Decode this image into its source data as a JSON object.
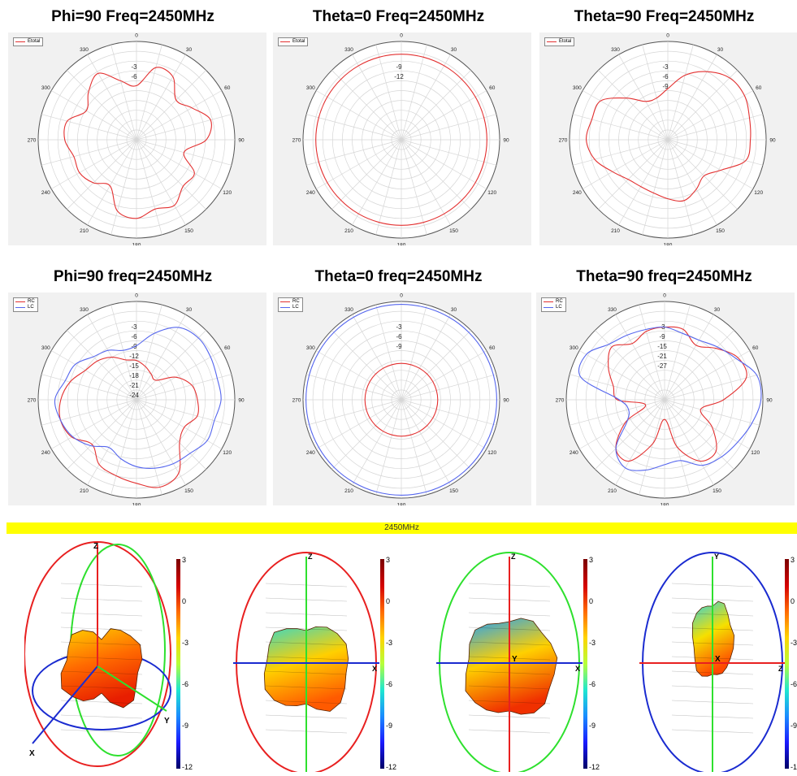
{
  "angle_labels": [
    "0",
    "30",
    "60",
    "90",
    "120",
    "150",
    "180",
    "210",
    "240",
    "270",
    "300",
    "330"
  ],
  "charts": [
    {
      "title": "Phi=90 Freq=2450MHz",
      "legend": [
        "Etotal"
      ],
      "rings": [
        "-3",
        "-6"
      ],
      "series": [
        {
          "name": "Etotal",
          "color": "#e33030",
          "r": [
            0.55,
            0.76,
            0.74,
            0.57,
            0.65,
            0.78,
            0.71,
            0.5,
            0.68,
            0.67,
            0.77,
            0.73,
            0.8,
            0.75,
            0.54,
            0.62,
            0.67,
            0.66,
            0.73,
            0.73,
            0.59,
            0.69,
            0.78,
            0.62
          ]
        }
      ]
    },
    {
      "title": "Theta=0 Freq=2450MHz",
      "legend": [
        "Etotal"
      ],
      "rings": [
        "-9",
        "-12"
      ],
      "series": [
        {
          "name": "Etotal",
          "color": "#e33030",
          "r": [
            0.87,
            0.87,
            0.87,
            0.87,
            0.87,
            0.87,
            0.87,
            0.87,
            0.87,
            0.87,
            0.87,
            0.87,
            0.87,
            0.87,
            0.87,
            0.87,
            0.87,
            0.87,
            0.87,
            0.87,
            0.87,
            0.87,
            0.87,
            0.87
          ]
        }
      ]
    },
    {
      "title": "Theta=90 Freq=2450MHz",
      "legend": [
        "Etotal"
      ],
      "rings": [
        "-3",
        "-6",
        "-9"
      ],
      "series": [
        {
          "name": "Etotal",
          "color": "#e33030",
          "r": [
            0.52,
            0.68,
            0.8,
            0.89,
            0.9,
            0.86,
            0.84,
            0.82,
            0.62,
            0.52,
            0.58,
            0.64,
            0.6,
            0.56,
            0.55,
            0.57,
            0.65,
            0.77,
            0.83,
            0.8,
            0.79,
            0.6,
            0.45,
            0.44
          ]
        }
      ]
    },
    {
      "title": "Phi=90 freq=2450MHz",
      "legend": [
        "RC",
        "LC"
      ],
      "rings": [
        "-3",
        "-6",
        "-9",
        "-12",
        "-15",
        "-18",
        "-21",
        "-24"
      ],
      "series": [
        {
          "name": "RC",
          "color": "#e33030",
          "r": [
            0.4,
            0.35,
            0.3,
            0.28,
            0.46,
            0.58,
            0.62,
            0.64,
            0.56,
            0.62,
            0.86,
            0.92,
            0.85,
            0.8,
            0.76,
            0.64,
            0.76,
            0.8,
            0.77,
            0.7,
            0.6,
            0.56,
            0.5,
            0.42
          ]
        },
        {
          "name": "LC",
          "color": "#5566ee",
          "r": [
            0.55,
            0.7,
            0.85,
            0.89,
            0.87,
            0.85,
            0.86,
            0.82,
            0.83,
            0.77,
            0.75,
            0.72,
            0.68,
            0.62,
            0.56,
            0.66,
            0.75,
            0.8,
            0.83,
            0.75,
            0.72,
            0.62,
            0.58,
            0.52
          ]
        }
      ]
    },
    {
      "title": "Theta=0 freq=2450MHz",
      "legend": [
        "RC",
        "LC"
      ],
      "rings": [
        "-3",
        "-6",
        "-9"
      ],
      "series": [
        {
          "name": "RC",
          "color": "#e33030",
          "r": [
            0.37,
            0.37,
            0.37,
            0.37,
            0.37,
            0.37,
            0.37,
            0.37,
            0.37,
            0.37,
            0.37,
            0.37,
            0.37,
            0.37,
            0.37,
            0.37,
            0.37,
            0.37,
            0.37,
            0.37,
            0.37,
            0.37,
            0.37,
            0.37
          ]
        },
        {
          "name": "LC",
          "color": "#5566ee",
          "r": [
            0.97,
            0.97,
            0.97,
            0.97,
            0.97,
            0.97,
            0.97,
            0.97,
            0.97,
            0.97,
            0.97,
            0.97,
            0.97,
            0.97,
            0.97,
            0.97,
            0.97,
            0.97,
            0.97,
            0.97,
            0.97,
            0.97,
            0.97,
            0.97
          ]
        }
      ]
    },
    {
      "title": "Theta=90 freq=2450MHz",
      "legend": [
        "RC",
        "LC"
      ],
      "rings": [
        "-3",
        "-9",
        "-15",
        "-21",
        "-27"
      ],
      "series": [
        {
          "name": "RC",
          "color": "#e33030",
          "r": [
            0.74,
            0.74,
            0.64,
            0.74,
            0.86,
            0.86,
            0.6,
            0.38,
            0.56,
            0.74,
            0.72,
            0.5,
            0.2,
            0.46,
            0.72,
            0.7,
            0.46,
            0.2,
            0.48,
            0.54,
            0.66,
            0.76,
            0.66,
            0.72
          ]
        },
        {
          "name": "LC",
          "color": "#5566ee",
          "r": [
            0.74,
            0.7,
            0.7,
            0.76,
            0.84,
            0.97,
            0.98,
            0.92,
            0.86,
            0.82,
            0.77,
            0.64,
            0.66,
            0.74,
            0.8,
            0.7,
            0.44,
            0.38,
            0.46,
            0.88,
            0.92,
            0.8,
            0.76,
            0.74
          ]
        }
      ]
    }
  ],
  "banner": "2450MHz",
  "views3d": [
    {
      "axes": [
        "Z",
        "X",
        "Y"
      ],
      "colorbar": [
        "3",
        "0",
        "-3",
        "-6",
        "-9",
        "-12"
      ]
    },
    {
      "axes": [
        "Z",
        "X"
      ],
      "colorbar": [
        "3",
        "0",
        "-3",
        "-6",
        "-9",
        "-12"
      ]
    },
    {
      "axes": [
        "Z",
        "X",
        "Y"
      ],
      "colorbar": [
        "3",
        "0",
        "-3",
        "-6",
        "-9",
        "-12"
      ]
    },
    {
      "axes": [
        "Y",
        "Z",
        "X"
      ],
      "colorbar": [
        "3",
        "0",
        "-3",
        "-6",
        "-9",
        "-1"
      ]
    }
  ],
  "colors": {
    "rc": "#e33030",
    "lc": "#5566ee",
    "grid": "#d6d6d6",
    "panel": "#f1f1f1",
    "banner": "#ffff00"
  },
  "chart_data": [
    {
      "type": "polar",
      "title": "Phi=90 Freq=2450MHz",
      "angle_step_deg": 15,
      "series": [
        {
          "name": "Etotal",
          "r": [
            0.55,
            0.76,
            0.74,
            0.57,
            0.65,
            0.78,
            0.71,
            0.5,
            0.68,
            0.67,
            0.77,
            0.73,
            0.8,
            0.75,
            0.54,
            0.62,
            0.67,
            0.66,
            0.73,
            0.73,
            0.59,
            0.69,
            0.78,
            0.62
          ]
        }
      ]
    },
    {
      "type": "polar",
      "title": "Theta=0 Freq=2450MHz",
      "angle_step_deg": 15,
      "series": [
        {
          "name": "Etotal",
          "r": "constant 0.87"
        }
      ]
    },
    {
      "type": "polar",
      "title": "Theta=90 Freq=2450MHz",
      "angle_step_deg": 15,
      "series": [
        {
          "name": "Etotal"
        }
      ]
    },
    {
      "type": "polar",
      "title": "Phi=90 freq=2450MHz",
      "angle_step_deg": 15,
      "series": [
        {
          "name": "RC"
        },
        {
          "name": "LC"
        }
      ]
    },
    {
      "type": "polar",
      "title": "Theta=0 freq=2450MHz",
      "angle_step_deg": 15,
      "series": [
        {
          "name": "RC"
        },
        {
          "name": "LC"
        }
      ]
    },
    {
      "type": "polar",
      "title": "Theta=90 freq=2450MHz",
      "angle_step_deg": 15,
      "series": [
        {
          "name": "RC"
        },
        {
          "name": "LC"
        }
      ]
    }
  ]
}
